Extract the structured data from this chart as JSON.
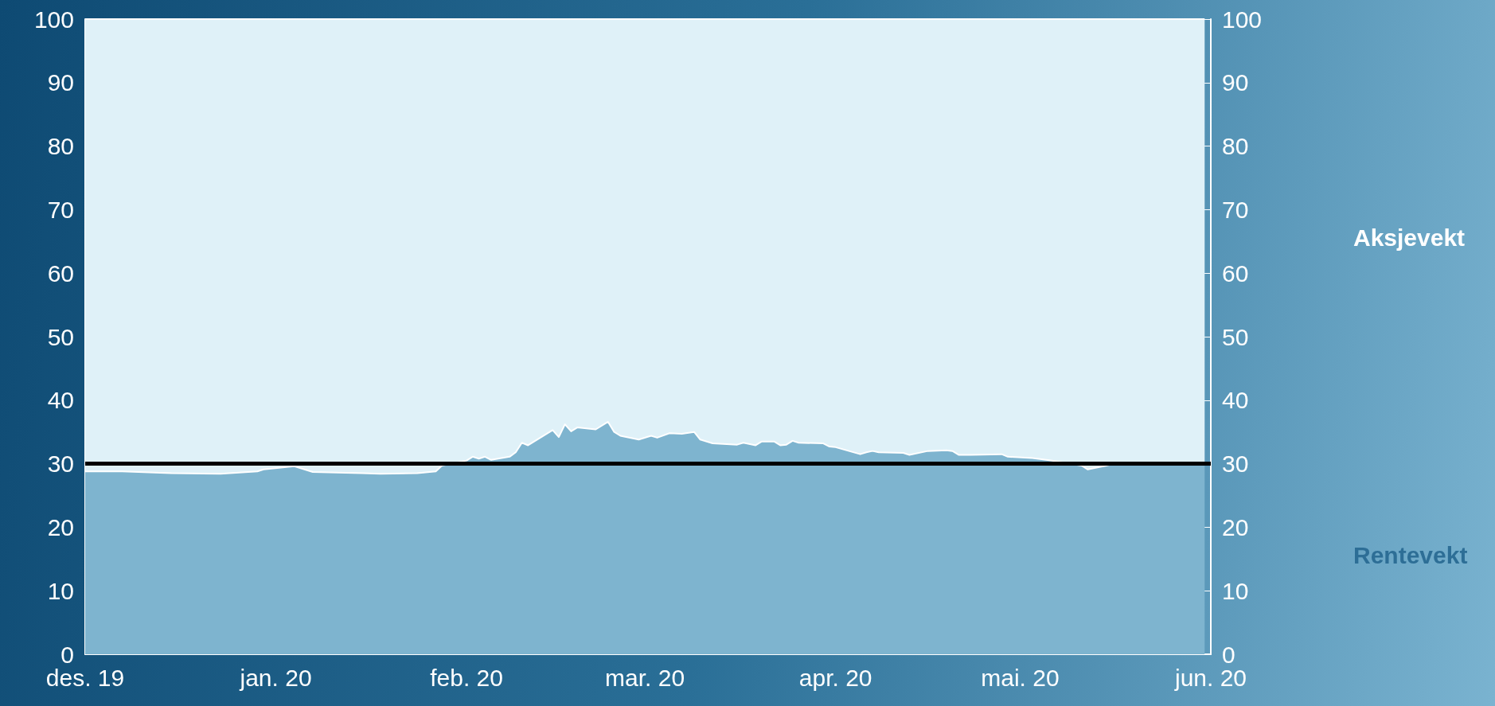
{
  "chart_data": {
    "type": "area",
    "stacked": true,
    "legend": false,
    "x": [
      "2019-12-01",
      "2019-12-07",
      "2019-12-15",
      "2019-12-23",
      "2019-12-29",
      "2019-12-30",
      "2020-01-04",
      "2020-01-07",
      "2020-01-15",
      "2020-01-18",
      "2020-01-24",
      "2020-01-27",
      "2020-01-28",
      "2020-02-01",
      "2020-02-02",
      "2020-02-03",
      "2020-02-04",
      "2020-02-05",
      "2020-02-08",
      "2020-02-09",
      "2020-02-10",
      "2020-02-11",
      "2020-02-15",
      "2020-02-16",
      "2020-02-17",
      "2020-02-18",
      "2020-02-19",
      "2020-02-22",
      "2020-02-24",
      "2020-02-25",
      "2020-02-26",
      "2020-02-29",
      "2020-03-02",
      "2020-03-03",
      "2020-03-05",
      "2020-03-07",
      "2020-03-09",
      "2020-03-10",
      "2020-03-12",
      "2020-03-16",
      "2020-03-17",
      "2020-03-19",
      "2020-03-20",
      "2020-03-22",
      "2020-03-23",
      "2020-03-24",
      "2020-03-25",
      "2020-03-26",
      "2020-03-30",
      "2020-03-31",
      "2020-04-01",
      "2020-04-05",
      "2020-04-06",
      "2020-04-07",
      "2020-04-08",
      "2020-04-12",
      "2020-04-13",
      "2020-04-16",
      "2020-04-19",
      "2020-04-20",
      "2020-04-21",
      "2020-04-23",
      "2020-04-28",
      "2020-04-29",
      "2020-05-03",
      "2020-05-06",
      "2020-05-11",
      "2020-05-12",
      "2020-05-15",
      "2020-05-17",
      "2020-05-19",
      "2020-05-22",
      "2020-05-31"
    ],
    "series": [
      {
        "name": "Rentevekt",
        "color": "#7eb4cf",
        "values": [
          28.8,
          28.8,
          28.5,
          28.4,
          28.8,
          29.1,
          29.6,
          28.7,
          28.5,
          28.4,
          28.5,
          28.8,
          29.7,
          30.5,
          31.1,
          30.8,
          31.1,
          30.6,
          31.1,
          31.8,
          33.3,
          32.9,
          35.3,
          34.2,
          36.2,
          35.1,
          35.7,
          35.4,
          36.6,
          35.0,
          34.4,
          33.8,
          34.4,
          34.1,
          34.8,
          34.7,
          35.0,
          33.8,
          33.2,
          33.0,
          33.3,
          32.9,
          33.5,
          33.5,
          32.9,
          33.0,
          33.6,
          33.3,
          33.2,
          32.7,
          32.6,
          31.5,
          31.8,
          32.0,
          31.8,
          31.7,
          31.4,
          32.0,
          32.1,
          32.0,
          31.4,
          31.4,
          31.5,
          31.1,
          30.9,
          30.5,
          29.7,
          29.1,
          29.7,
          30.2,
          30.0,
          29.9,
          29.9
        ]
      },
      {
        "name": "Aksjevekt",
        "color": "#dff1f8",
        "values": [
          71.2,
          71.2,
          71.5,
          71.6,
          71.2,
          70.9,
          70.4,
          71.3,
          71.5,
          71.6,
          71.5,
          71.2,
          70.3,
          69.5,
          68.9,
          69.2,
          68.9,
          69.4,
          68.9,
          68.2,
          66.7,
          67.1,
          64.7,
          65.8,
          63.8,
          64.9,
          64.3,
          64.6,
          63.4,
          65.0,
          65.6,
          66.2,
          65.6,
          65.9,
          65.2,
          65.3,
          65.0,
          66.2,
          66.8,
          67.0,
          66.7,
          67.1,
          66.5,
          66.5,
          67.1,
          67.0,
          66.4,
          66.7,
          66.8,
          67.3,
          67.4,
          68.5,
          68.2,
          68.0,
          68.2,
          68.3,
          68.6,
          68.0,
          67.9,
          68.0,
          68.6,
          68.6,
          68.5,
          68.9,
          69.1,
          69.5,
          70.3,
          70.9,
          70.3,
          69.8,
          70.0,
          70.1,
          70.1
        ]
      }
    ],
    "xlim": [
      "2019-12-01",
      "2020-06-01"
    ],
    "xticks": [
      {
        "value": "2019-12-01",
        "label": "des. 19"
      },
      {
        "value": "2020-01-01",
        "label": "jan. 20"
      },
      {
        "value": "2020-02-01",
        "label": "feb. 20"
      },
      {
        "value": "2020-03-01",
        "label": "mar. 20"
      },
      {
        "value": "2020-04-01",
        "label": "apr. 20"
      },
      {
        "value": "2020-05-01",
        "label": "mai. 20"
      },
      {
        "value": "2020-06-01",
        "label": "jun. 20"
      }
    ],
    "ylim": [
      0,
      100
    ],
    "yticks": [
      0,
      10,
      20,
      30,
      40,
      50,
      60,
      70,
      80,
      90,
      100
    ],
    "y2lim": [
      0,
      100
    ],
    "y2ticks": [
      0,
      10,
      20,
      30,
      40,
      50,
      60,
      70,
      80,
      90,
      100
    ],
    "ref_lines": [
      {
        "axis": "y",
        "value": 30,
        "color": "#000000"
      }
    ]
  }
}
